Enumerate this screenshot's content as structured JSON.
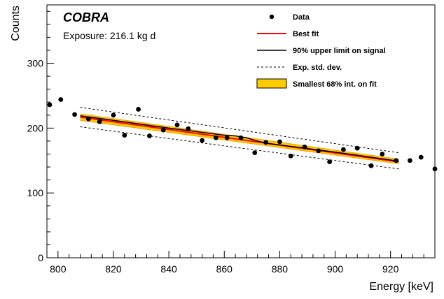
{
  "chart_data": {
    "type": "scatter",
    "title": "COBRA",
    "subtitle": "Exposure: 216.1 kg d",
    "xlabel": "Energy [keV]",
    "ylabel": "Counts",
    "xlim": [
      796,
      936
    ],
    "ylim": [
      0,
      390
    ],
    "x_ticks": [
      800,
      820,
      840,
      860,
      880,
      900,
      920
    ],
    "y_ticks": [
      0,
      100,
      200,
      300
    ],
    "legend_position": "top-right",
    "colors": {
      "data": "#000000",
      "best_fit": "#ff0000",
      "upper_limit": "#000000",
      "band": "#ffcc00",
      "band_edge": "#ff9900"
    },
    "legend": [
      {
        "key": "data",
        "label": "Data"
      },
      {
        "key": "best_fit",
        "label": "Best fit"
      },
      {
        "key": "upper_limit",
        "label": "90% upper limit on signal"
      },
      {
        "key": "std_dev",
        "label": "Exp. std. dev."
      },
      {
        "key": "band",
        "label": "Smallest 68% int. on fit"
      }
    ],
    "series": [
      {
        "key": "data",
        "type": "scatter",
        "x": [
          797,
          801,
          806,
          811,
          815,
          820,
          824,
          829,
          833,
          838,
          843,
          847,
          852,
          857,
          861,
          866,
          871,
          875,
          880,
          884,
          889,
          894,
          898,
          903,
          908,
          913,
          917,
          922,
          927,
          931,
          936
        ],
        "y": [
          236,
          244,
          221,
          214,
          210,
          220,
          189,
          229,
          188,
          197,
          205,
          199,
          181,
          185,
          185,
          185,
          162,
          178,
          179,
          157,
          171,
          165,
          148,
          167,
          169,
          142,
          160,
          150,
          150,
          155,
          137
        ]
      },
      {
        "key": "best_fit",
        "type": "line",
        "x": [
          808,
          923
        ],
        "y": [
          217,
          148
        ]
      },
      {
        "key": "upper_limit",
        "type": "line",
        "x": [
          808,
          820,
          840,
          860,
          864,
          868,
          872,
          876,
          880,
          900,
          923
        ],
        "y": [
          219,
          212,
          200,
          189,
          188,
          185,
          180,
          176,
          174,
          163,
          149
        ]
      },
      {
        "key": "band",
        "type": "band",
        "x": [
          808,
          923
        ],
        "upper": [
          222,
          152
        ],
        "lower": [
          212,
          145
        ]
      },
      {
        "key": "std_dev",
        "type": "band-lines",
        "x": [
          808,
          923
        ],
        "upper": [
          232,
          162
        ],
        "lower": [
          202,
          137
        ]
      }
    ]
  }
}
